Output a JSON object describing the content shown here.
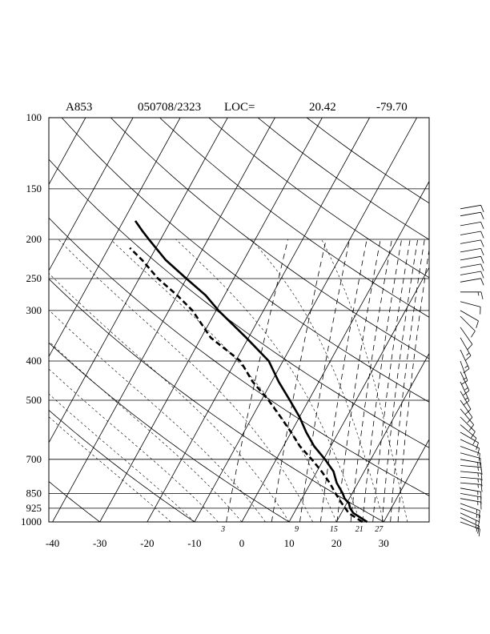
{
  "title": {
    "station": "A853",
    "datetime": "050708/2323",
    "loc_label": "LOC=",
    "lat": "20.42",
    "lon": "-79.70"
  },
  "chart_data": {
    "type": "line",
    "diagram": "skew-T log-p",
    "pressure_levels": [
      100,
      150,
      200,
      250,
      300,
      400,
      500,
      700,
      850,
      925,
      1000
    ],
    "temperature_ticks": [
      -40,
      -30,
      -20,
      -10,
      0,
      10,
      20,
      30
    ],
    "xlim": [
      -40,
      40
    ],
    "ylim": [
      1000,
      100
    ],
    "mixing_ratio_labels": [
      "3",
      "9",
      "15",
      "21",
      "27"
    ],
    "series": [
      {
        "style": "solid",
        "points": [
          {
            "p": 1000,
            "t": 26.5
          },
          {
            "p": 975,
            "t": 24.5
          },
          {
            "p": 950,
            "t": 22.5
          },
          {
            "p": 925,
            "t": 21.3
          },
          {
            "p": 900,
            "t": 20.5
          },
          {
            "p": 875,
            "t": 19.0
          },
          {
            "p": 850,
            "t": 18.0
          },
          {
            "p": 800,
            "t": 15.5
          },
          {
            "p": 750,
            "t": 13.5
          },
          {
            "p": 700,
            "t": 10.3
          },
          {
            "p": 650,
            "t": 6.5
          },
          {
            "p": 600,
            "t": 3.2
          },
          {
            "p": 550,
            "t": 0.0
          },
          {
            "p": 500,
            "t": -4.0
          },
          {
            "p": 450,
            "t": -8.5
          },
          {
            "p": 400,
            "t": -13.0
          },
          {
            "p": 350,
            "t": -20.5
          },
          {
            "p": 300,
            "t": -29.5
          },
          {
            "p": 275,
            "t": -34.0
          },
          {
            "p": 250,
            "t": -40.0
          },
          {
            "p": 225,
            "t": -46.5
          },
          {
            "p": 200,
            "t": -52.5
          },
          {
            "p": 190,
            "t": -55.0
          },
          {
            "p": 180,
            "t": -57.5
          }
        ]
      },
      {
        "style": "dashed",
        "points": [
          {
            "p": 1000,
            "t": 25.5
          },
          {
            "p": 975,
            "t": 23.5
          },
          {
            "p": 950,
            "t": 21.5
          },
          {
            "p": 925,
            "t": 20.3
          },
          {
            "p": 900,
            "t": 19.0
          },
          {
            "p": 850,
            "t": 16.5
          },
          {
            "p": 800,
            "t": 14.0
          },
          {
            "p": 750,
            "t": 11.0
          },
          {
            "p": 700,
            "t": 7.5
          },
          {
            "p": 650,
            "t": 3.5
          },
          {
            "p": 600,
            "t": 0.0
          },
          {
            "p": 550,
            "t": -4.0
          },
          {
            "p": 500,
            "t": -8.5
          },
          {
            "p": 450,
            "t": -14.0
          },
          {
            "p": 400,
            "t": -19.0
          },
          {
            "p": 350,
            "t": -28.0
          },
          {
            "p": 300,
            "t": -35.0
          },
          {
            "p": 275,
            "t": -40.0
          },
          {
            "p": 250,
            "t": -46.0
          },
          {
            "p": 225,
            "t": -51.5
          },
          {
            "p": 210,
            "t": -55.5
          }
        ]
      }
    ],
    "wind_barbs": [
      {
        "p": 1000,
        "dir": 110,
        "spd": 15
      },
      {
        "p": 975,
        "dir": 115,
        "spd": 15
      },
      {
        "p": 950,
        "dir": 115,
        "spd": 15
      },
      {
        "p": 925,
        "dir": 110,
        "spd": 15
      },
      {
        "p": 900,
        "dir": 110,
        "spd": 15
      },
      {
        "p": 875,
        "dir": 100,
        "spd": 15
      },
      {
        "p": 850,
        "dir": 100,
        "spd": 15
      },
      {
        "p": 825,
        "dir": 100,
        "spd": 15
      },
      {
        "p": 800,
        "dir": 95,
        "spd": 15
      },
      {
        "p": 775,
        "dir": 95,
        "spd": 15
      },
      {
        "p": 750,
        "dir": 95,
        "spd": 15
      },
      {
        "p": 725,
        "dir": 95,
        "spd": 15
      },
      {
        "p": 700,
        "dir": 100,
        "spd": 15
      },
      {
        "p": 675,
        "dir": 105,
        "spd": 10
      },
      {
        "p": 650,
        "dir": 110,
        "spd": 10
      },
      {
        "p": 625,
        "dir": 115,
        "spd": 10
      },
      {
        "p": 600,
        "dir": 120,
        "spd": 10
      },
      {
        "p": 575,
        "dir": 130,
        "spd": 10
      },
      {
        "p": 550,
        "dir": 135,
        "spd": 10
      },
      {
        "p": 525,
        "dir": 140,
        "spd": 10
      },
      {
        "p": 500,
        "dir": 145,
        "spd": 10
      },
      {
        "p": 475,
        "dir": 150,
        "spd": 10
      },
      {
        "p": 450,
        "dir": 155,
        "spd": 15
      },
      {
        "p": 425,
        "dir": 155,
        "spd": 15
      },
      {
        "p": 400,
        "dir": 160,
        "spd": 15
      },
      {
        "p": 375,
        "dir": 155,
        "spd": 15
      },
      {
        "p": 350,
        "dir": 150,
        "spd": 15
      },
      {
        "p": 330,
        "dir": 145,
        "spd": 10
      },
      {
        "p": 310,
        "dir": 135,
        "spd": 10
      },
      {
        "p": 300,
        "dir": 120,
        "spd": 10
      },
      {
        "p": 285,
        "dir": 105,
        "spd": 10
      },
      {
        "p": 270,
        "dir": 90,
        "spd": 15
      },
      {
        "p": 255,
        "dir": 80,
        "spd": 10
      },
      {
        "p": 245,
        "dir": 80,
        "spd": 10
      },
      {
        "p": 235,
        "dir": 80,
        "spd": 10
      },
      {
        "p": 225,
        "dir": 80,
        "spd": 10
      },
      {
        "p": 215,
        "dir": 80,
        "spd": 10
      },
      {
        "p": 205,
        "dir": 80,
        "spd": 10
      },
      {
        "p": 195,
        "dir": 80,
        "spd": 10
      },
      {
        "p": 185,
        "dir": 80,
        "spd": 10
      },
      {
        "p": 175,
        "dir": 80,
        "spd": 10
      },
      {
        "p": 168,
        "dir": 80,
        "spd": 10
      }
    ]
  }
}
